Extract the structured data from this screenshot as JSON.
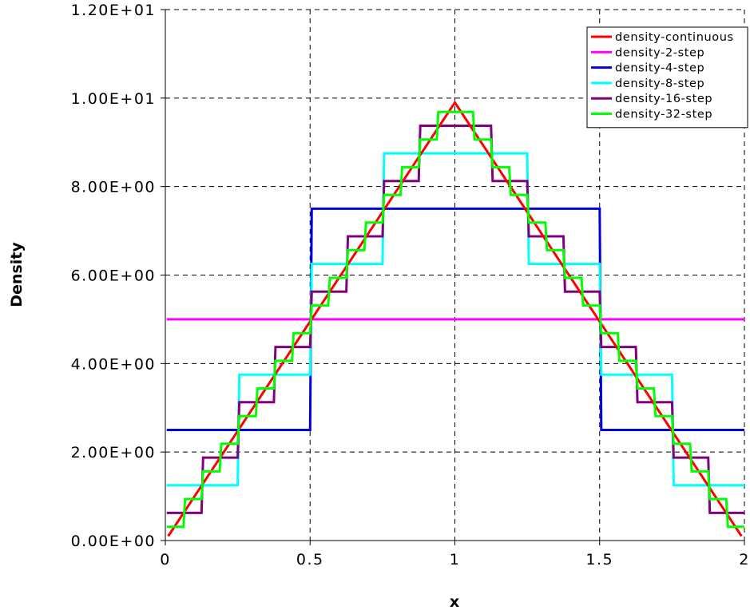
{
  "chart_data": {
    "type": "line",
    "title": "",
    "xlabel": "x",
    "ylabel": "Density",
    "xlim": [
      0,
      2
    ],
    "ylim": [
      0,
      12
    ],
    "x_ticks": [
      0,
      0.5,
      1,
      1.5,
      2
    ],
    "x_tick_labels": [
      "0",
      "0.5",
      "1",
      "1.5",
      "2"
    ],
    "y_ticks": [
      0,
      2,
      4,
      6,
      8,
      10,
      12
    ],
    "y_tick_labels": [
      "0.00E+00",
      "2.00E+00",
      "4.00E+00",
      "6.00E+00",
      "8.00E+00",
      "1.00E+01",
      "1.20E+01"
    ],
    "grid": true,
    "legend_position": "top-right",
    "series": [
      {
        "name": "density-continuous",
        "color": "#ff0000",
        "kind": "continuous",
        "steps": 0,
        "x": [
          0,
          1,
          2
        ],
        "y": [
          0,
          10,
          0
        ]
      },
      {
        "name": "density-2-step",
        "color": "#ff00ff",
        "kind": "step",
        "steps": 2,
        "x": [
          0,
          2
        ],
        "y": [
          5,
          5
        ]
      },
      {
        "name": "density-4-step",
        "color": "#0000dd",
        "kind": "step",
        "steps": 4,
        "x": [
          0,
          0.5,
          1.5,
          2
        ],
        "y": [
          2.5,
          7.5,
          7.5,
          2.5
        ]
      },
      {
        "name": "density-8-step",
        "color": "#00ffff",
        "kind": "step",
        "steps": 8,
        "x": [
          0,
          0.25,
          0.5,
          0.75,
          1.25,
          1.5,
          1.75,
          2
        ],
        "y": [
          1.25,
          3.75,
          6.25,
          8.75,
          8.75,
          6.25,
          3.75,
          1.25
        ]
      },
      {
        "name": "density-16-step",
        "color": "#800080",
        "kind": "step",
        "steps": 16,
        "x": [
          0,
          0.125,
          0.25,
          0.375,
          0.5,
          0.625,
          0.75,
          0.875,
          1.125,
          1.25,
          1.375,
          1.5,
          1.625,
          1.75,
          1.875,
          2
        ],
        "y": [
          0.625,
          1.875,
          3.125,
          4.375,
          5.625,
          6.875,
          8.125,
          9.375,
          9.375,
          8.125,
          6.875,
          5.625,
          4.375,
          3.125,
          1.875,
          0.625
        ]
      },
      {
        "name": "density-32-step",
        "color": "#00ff00",
        "kind": "step",
        "steps": 32,
        "x": [
          0,
          0.0625,
          0.125,
          0.1875,
          0.25,
          0.3125,
          0.375,
          0.4375,
          0.5,
          0.5625,
          0.625,
          0.6875,
          0.75,
          0.8125,
          0.875,
          0.9375,
          1.0625,
          1.125,
          1.1875,
          1.25,
          1.3125,
          1.375,
          1.4375,
          1.5,
          1.5625,
          1.625,
          1.6875,
          1.75,
          1.8125,
          1.875,
          1.9375,
          2
        ],
        "y": [
          0.3125,
          0.9375,
          1.5625,
          2.1875,
          2.8125,
          3.4375,
          4.0625,
          4.6875,
          5.3125,
          5.9375,
          6.5625,
          7.1875,
          7.8125,
          8.4375,
          9.0625,
          9.6875,
          9.6875,
          9.0625,
          8.4375,
          7.8125,
          7.1875,
          6.5625,
          5.9375,
          5.3125,
          4.6875,
          4.0625,
          3.4375,
          2.8125,
          2.1875,
          1.5625,
          0.9375,
          0.3125
        ]
      }
    ]
  }
}
